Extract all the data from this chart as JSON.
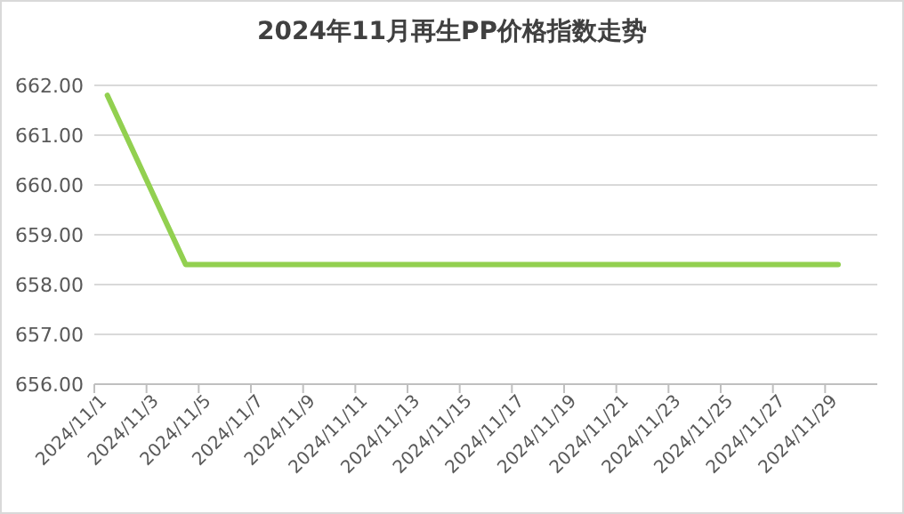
{
  "chart_data": {
    "type": "line",
    "title": "2024年11月再生PP价格指数走势",
    "categories": [
      "2024/11/1",
      null,
      "2024/11/3",
      null,
      "2024/11/5",
      null,
      "2024/11/7",
      null,
      "2024/11/9",
      null,
      "2024/11/11",
      null,
      "2024/11/13",
      null,
      "2024/11/15",
      null,
      "2024/11/17",
      null,
      "2024/11/19",
      null,
      "2024/11/21",
      null,
      "2024/11/23",
      null,
      "2024/11/25",
      null,
      "2024/11/27",
      null,
      "2024/11/29",
      null
    ],
    "values": [
      661.8,
      null,
      null,
      658.4,
      658.4,
      658.4,
      658.4,
      658.4,
      658.4,
      658.4,
      658.4,
      658.4,
      658.4,
      658.4,
      658.4,
      658.4,
      658.4,
      658.4,
      658.4,
      658.4,
      658.4,
      658.4,
      658.4,
      658.4,
      658.4,
      658.4,
      658.4,
      658.4,
      658.4,
      null
    ],
    "color": "#92d050",
    "line_style": "solid",
    "grid": "y",
    "ylim": [
      656,
      662
    ],
    "yticks": [
      {
        "value": 656,
        "label": "656.00"
      },
      {
        "value": 657,
        "label": "657.00"
      },
      {
        "value": 658,
        "label": "658.00"
      },
      {
        "value": 659,
        "label": "659.00"
      },
      {
        "value": 660,
        "label": "660.00"
      },
      {
        "value": 661,
        "label": "661.00"
      },
      {
        "value": 662,
        "label": "662.00"
      }
    ]
  }
}
